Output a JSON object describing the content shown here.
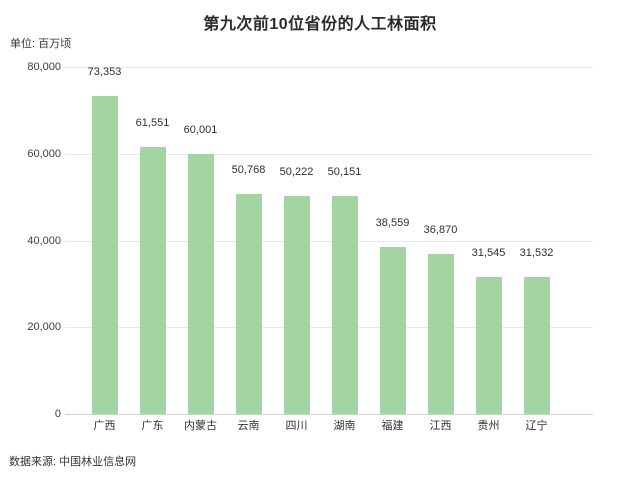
{
  "title": "第九次前10位省份的人工林面积",
  "unit_label": "单位: 百万顷",
  "source_label": "数据来源: 中国林业信息网",
  "chart_data": {
    "type": "bar",
    "title": "第九次前10位省份的人工林面积",
    "unit_label": "单位: 百万顷",
    "source_label": "数据来源: 中国林业信息网",
    "categories": [
      "广西",
      "广东",
      "内蒙古",
      "云南",
      "四川",
      "湖南",
      "福建",
      "江西",
      "贵州",
      "辽宁"
    ],
    "values": [
      73353,
      61551,
      60001,
      50768,
      50222,
      50151,
      38559,
      36870,
      31545,
      31532
    ],
    "value_labels": [
      "73,353",
      "61,551",
      "60,001",
      "50,768",
      "50,222",
      "50,151",
      "38,559",
      "36,870",
      "31,545",
      "31,532"
    ],
    "xlabel": "",
    "ylabel": "",
    "ylim": [
      0,
      80000
    ],
    "yticks": [
      0,
      20000,
      40000,
      60000,
      80000
    ],
    "ytick_labels": [
      "0",
      "20,000",
      "40,000",
      "60,000",
      "80,000"
    ],
    "grid": true,
    "legend_position": "none",
    "bar_color": "#a3d5a3",
    "gridline_color": "#e9e9e9",
    "axis_line_color": "#cfcfcf",
    "text_color": "#333333"
  }
}
